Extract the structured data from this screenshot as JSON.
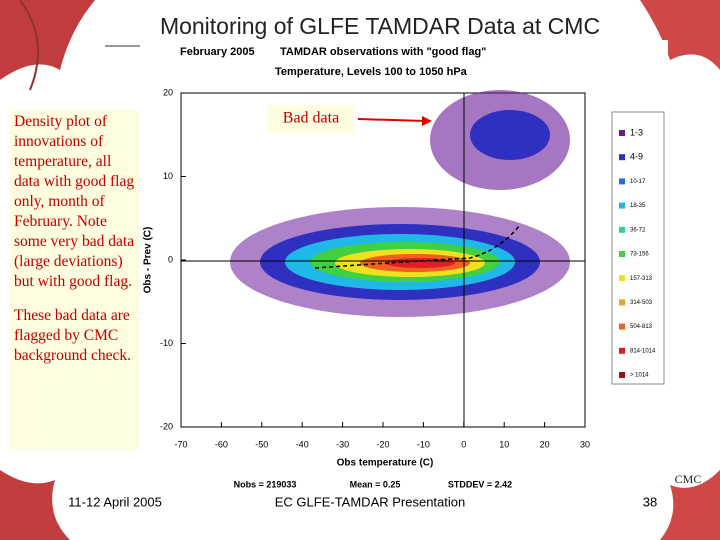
{
  "slide": {
    "title": "Monitoring of GLFE TAMDAR Data at CMC",
    "note_1": "Density plot of innovations of temperature, all data with good flag only, month of February. Note some very bad data (large deviations) but with good flag.",
    "note_2": "These bad data are flagged by CMC background check.",
    "callout": "Bad data",
    "corner_label": "CMC",
    "footer": {
      "date": "11-12 April 2005",
      "event": "EC GLFE-TAMDAR Presentation",
      "page": "38"
    }
  },
  "plot": {
    "header_left": "February 2005",
    "header_right": "TAMDAR observations with \"good flag\"",
    "subtitle": "Temperature, Levels 100 to 1050 hPa",
    "x_label": "Obs temperature (C)",
    "y_label": "Obs - Prev (C)",
    "xlim": [
      -70,
      30
    ],
    "ylim": [
      -20,
      20
    ],
    "xticks": [
      -70,
      -60,
      -50,
      -40,
      -30,
      -20,
      -10,
      0,
      10,
      20,
      30
    ],
    "yticks": [
      -20,
      -10,
      0,
      10,
      20
    ],
    "legend": [
      {
        "label": "1-3",
        "color": "#6a1b9a"
      },
      {
        "label": "4-9",
        "color": "#3030c0"
      },
      {
        "label": "10-17",
        "color": "#1e6fe0"
      },
      {
        "label": "18-35",
        "color": "#20b8e8"
      },
      {
        "label": "36-72",
        "color": "#30d0a0"
      },
      {
        "label": "73-156",
        "color": "#40d040"
      },
      {
        "label": "157-313",
        "color": "#f0e020"
      },
      {
        "label": "314-503",
        "color": "#f0a020"
      },
      {
        "label": "504-813",
        "color": "#f06020"
      },
      {
        "label": "814-1014",
        "color": "#e02020"
      },
      {
        "label": "> 1014",
        "color": "#a01010"
      }
    ],
    "stats": [
      "Nobs = 219033",
      "Mean = 0.25",
      "STDDEV = 2.42"
    ]
  }
}
